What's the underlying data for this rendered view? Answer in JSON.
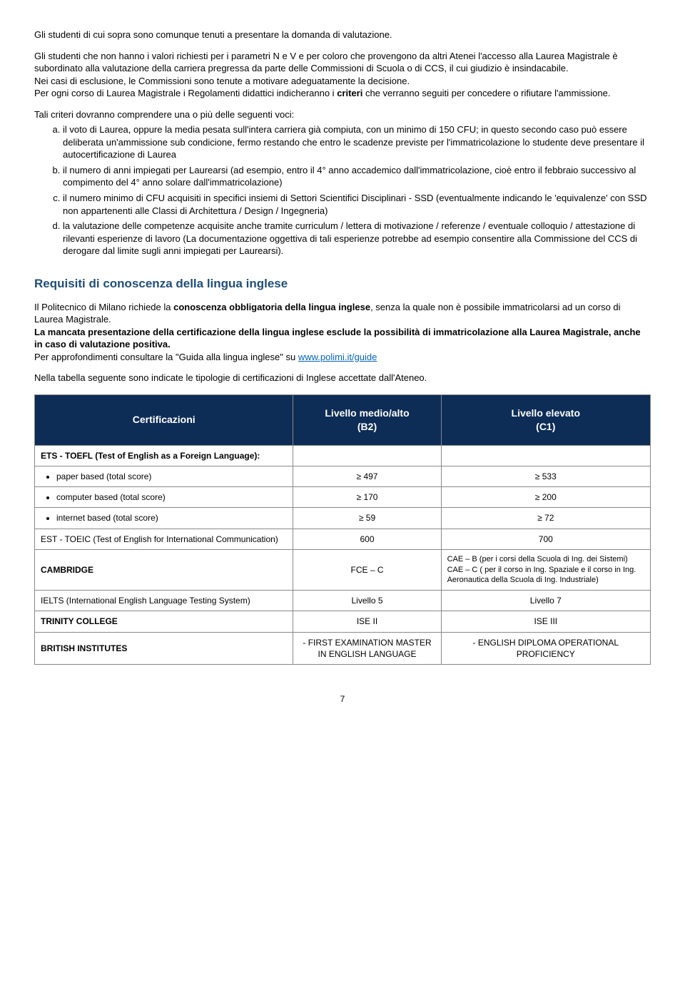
{
  "para1": "Gli studenti di cui sopra sono comunque tenuti a presentare la domanda di valutazione.",
  "para2": "Gli studenti che non hanno i valori richiesti per i parametri N e V e per coloro che provengono da altri Atenei l'accesso alla Laurea Magistrale è subordinato alla valutazione della carriera pregressa da parte delle Commissioni di Scuola o di CCS, il cui giudizio è insindacabile.",
  "para3": "Nei casi di esclusione, le Commissioni sono tenute a motivare adeguatamente la decisione.",
  "para4_a": "Per ogni corso di Laurea Magistrale i Regolamenti didattici indicheranno i ",
  "para4_b": "criteri",
  "para4_c": " che verranno seguiti per concedere o rifiutare l'ammissione.",
  "criteria_intro": "Tali criteri dovranno comprendere una o più delle seguenti voci:",
  "criteria": {
    "a": "il voto di Laurea, oppure la media pesata sull'intera carriera già compiuta, con un minimo di 150 CFU; in questo secondo caso può essere deliberata un'ammissione sub condicione, fermo restando che entro le scadenze previste per l'immatricolazione lo studente deve presentare il autocertificazione di Laurea",
    "b": "il numero di anni impiegati per Laurearsi (ad esempio, entro il 4° anno accademico dall'immatricolazione, cioè entro il febbraio successivo al compimento del 4° anno solare dall'immatricolazione)",
    "c": "il numero minimo di CFU acquisiti in specifici insiemi di Settori Scientifici Disciplinari - SSD (eventualmente indicando le 'equivalenze' con SSD non appartenenti alle Classi di Architettura / Design / Ingegneria)",
    "d": "la valutazione delle competenze acquisite anche tramite curriculum / lettera di motivazione / referenze / eventuale colloquio / attestazione di rilevanti esperienze di lavoro (La documentazione oggettiva di tali esperienze potrebbe ad esempio consentire alla Commissione del CCS di derogare dal limite sugli anni impiegati per Laurearsi)."
  },
  "section_title": "Requisiti di conoscenza della lingua inglese",
  "req_p1_a": "Il Politecnico di Milano richiede la ",
  "req_p1_b": "conoscenza obbligatoria della lingua inglese",
  "req_p1_c": ", senza la quale non è possibile immatricolarsi ad un corso di Laurea Magistrale.",
  "req_p2": "La mancata presentazione della certificazione della lingua inglese esclude la possibilità di immatricolazione alla Laurea Magistrale, anche in caso di valutazione positiva.",
  "req_p3_a": "Per approfondimenti consultare la \"Guida alla lingua inglese\" su ",
  "req_p3_link": "www.polimi.it/guide",
  "req_p4": "Nella tabella seguente sono indicate le tipologie di certificazioni di Inglese accettate dall'Ateneo.",
  "table": {
    "headers": {
      "c1": "Certificazioni",
      "c2": "Livello medio/alto\n(B2)",
      "c3": "Livello elevato\n(C1)"
    },
    "rows": [
      {
        "label": "ETS - TOEFL (Test of English as a Foreign Language):",
        "b2": "",
        "c1": "",
        "bold": true
      },
      {
        "label": "paper based (total score)",
        "b2": "≥ 497",
        "c1": "≥ 533",
        "bullet": true
      },
      {
        "label": "computer based (total score)",
        "b2": "≥ 170",
        "c1": "≥ 200",
        "bullet": true
      },
      {
        "label": "internet based (total score)",
        "b2": "≥ 59",
        "c1": "≥ 72",
        "bullet": true
      },
      {
        "label": "EST - TOEIC (Test of English for International Communication)",
        "b2": "600",
        "c1": "700"
      },
      {
        "label": "CAMBRIDGE",
        "b2": "FCE – C",
        "c1": "CAE – B (per i corsi della Scuola di Ing. dei Sistemi)\nCAE – C ( per il corso in Ing. Spaziale e il corso in Ing. Aeronautica della Scuola di Ing. Industriale)",
        "bold": true
      },
      {
        "label": "IELTS  (International English Language Testing System)",
        "b2": "Livello 5",
        "c1": "Livello 7"
      },
      {
        "label": "TRINITY COLLEGE",
        "b2": "ISE II",
        "c1": "ISE III",
        "bold": true
      },
      {
        "label": "BRITISH INSTITUTES",
        "b2": "-  FIRST EXAMINATION MASTER IN ENGLISH LANGUAGE",
        "c1": "-  ENGLISH DIPLOMA OPERATIONAL PROFICIENCY",
        "bold": true
      }
    ]
  },
  "page_number": "7"
}
